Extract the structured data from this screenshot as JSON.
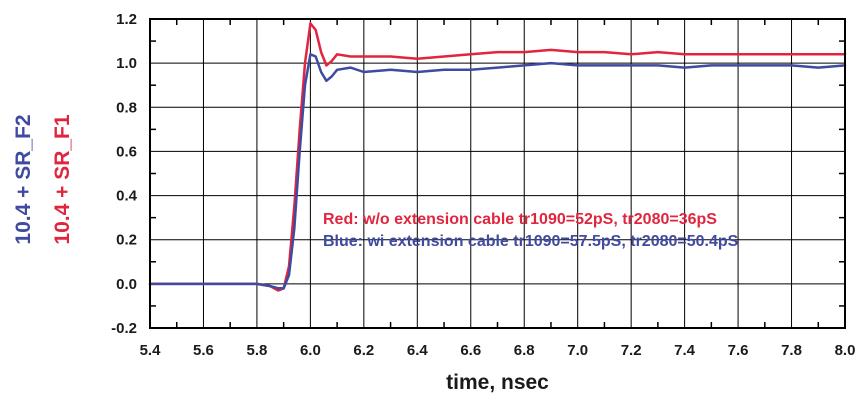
{
  "chart_data": {
    "type": "line",
    "title": "",
    "xlabel": "time, nsec",
    "ylabels": [
      {
        "text": "10.4 + SR_F2",
        "color": "#3f4aa0"
      },
      {
        "text": "10.4 + SR_F1",
        "color": "#e0263f"
      }
    ],
    "xlim": [
      5.4,
      8.0
    ],
    "ylim": [
      -0.2,
      1.2
    ],
    "grid": true,
    "x_ticks": [
      "5.4",
      "5.6",
      "5.8",
      "6.0",
      "6.2",
      "6.4",
      "6.6",
      "6.8",
      "7.0",
      "7.2",
      "7.4",
      "7.6",
      "7.8",
      "8.0"
    ],
    "y_ticks": [
      "-0.2",
      "0.0",
      "0.2",
      "0.4",
      "0.6",
      "0.8",
      "1.0",
      "1.2"
    ],
    "annotations": [
      {
        "text": "Red: w/o extension cable tr1090=52pS, tr2080=36pS",
        "color": "#e0263f"
      },
      {
        "text": "Blue: wi extension cable tr1090=57.5pS, tr2080=50.4pS",
        "color": "#3f4aa0"
      }
    ],
    "series": [
      {
        "color": "#e0263f",
        "x": [
          5.4,
          5.8,
          5.85,
          5.88,
          5.9,
          5.92,
          5.94,
          5.96,
          5.98,
          6.0,
          6.02,
          6.04,
          6.06,
          6.08,
          6.1,
          6.15,
          6.2,
          6.3,
          6.4,
          6.5,
          6.6,
          6.7,
          6.8,
          6.9,
          7.0,
          7.1,
          7.2,
          7.3,
          7.4,
          7.5,
          7.6,
          7.7,
          7.8,
          7.9,
          8.0
        ],
        "y": [
          0.0,
          0.0,
          -0.01,
          -0.03,
          -0.02,
          0.08,
          0.35,
          0.7,
          1.0,
          1.18,
          1.15,
          1.05,
          0.99,
          1.01,
          1.04,
          1.03,
          1.03,
          1.03,
          1.02,
          1.03,
          1.04,
          1.05,
          1.05,
          1.06,
          1.05,
          1.05,
          1.04,
          1.05,
          1.04,
          1.04,
          1.04,
          1.04,
          1.04,
          1.04,
          1.04
        ]
      },
      {
        "color": "#3f4aa0",
        "x": [
          5.4,
          5.8,
          5.85,
          5.88,
          5.9,
          5.92,
          5.94,
          5.96,
          5.98,
          6.0,
          6.02,
          6.04,
          6.06,
          6.08,
          6.1,
          6.15,
          6.2,
          6.3,
          6.4,
          6.5,
          6.6,
          6.7,
          6.8,
          6.9,
          7.0,
          7.1,
          7.2,
          7.3,
          7.4,
          7.5,
          7.6,
          7.7,
          7.8,
          7.9,
          8.0
        ],
        "y": [
          0.0,
          0.0,
          -0.01,
          -0.02,
          -0.02,
          0.04,
          0.25,
          0.6,
          0.9,
          1.04,
          1.03,
          0.96,
          0.92,
          0.94,
          0.97,
          0.98,
          0.96,
          0.97,
          0.96,
          0.97,
          0.97,
          0.98,
          0.99,
          1.0,
          0.99,
          0.99,
          0.99,
          0.99,
          0.98,
          0.99,
          0.99,
          0.99,
          0.99,
          0.98,
          0.99
        ]
      }
    ]
  }
}
